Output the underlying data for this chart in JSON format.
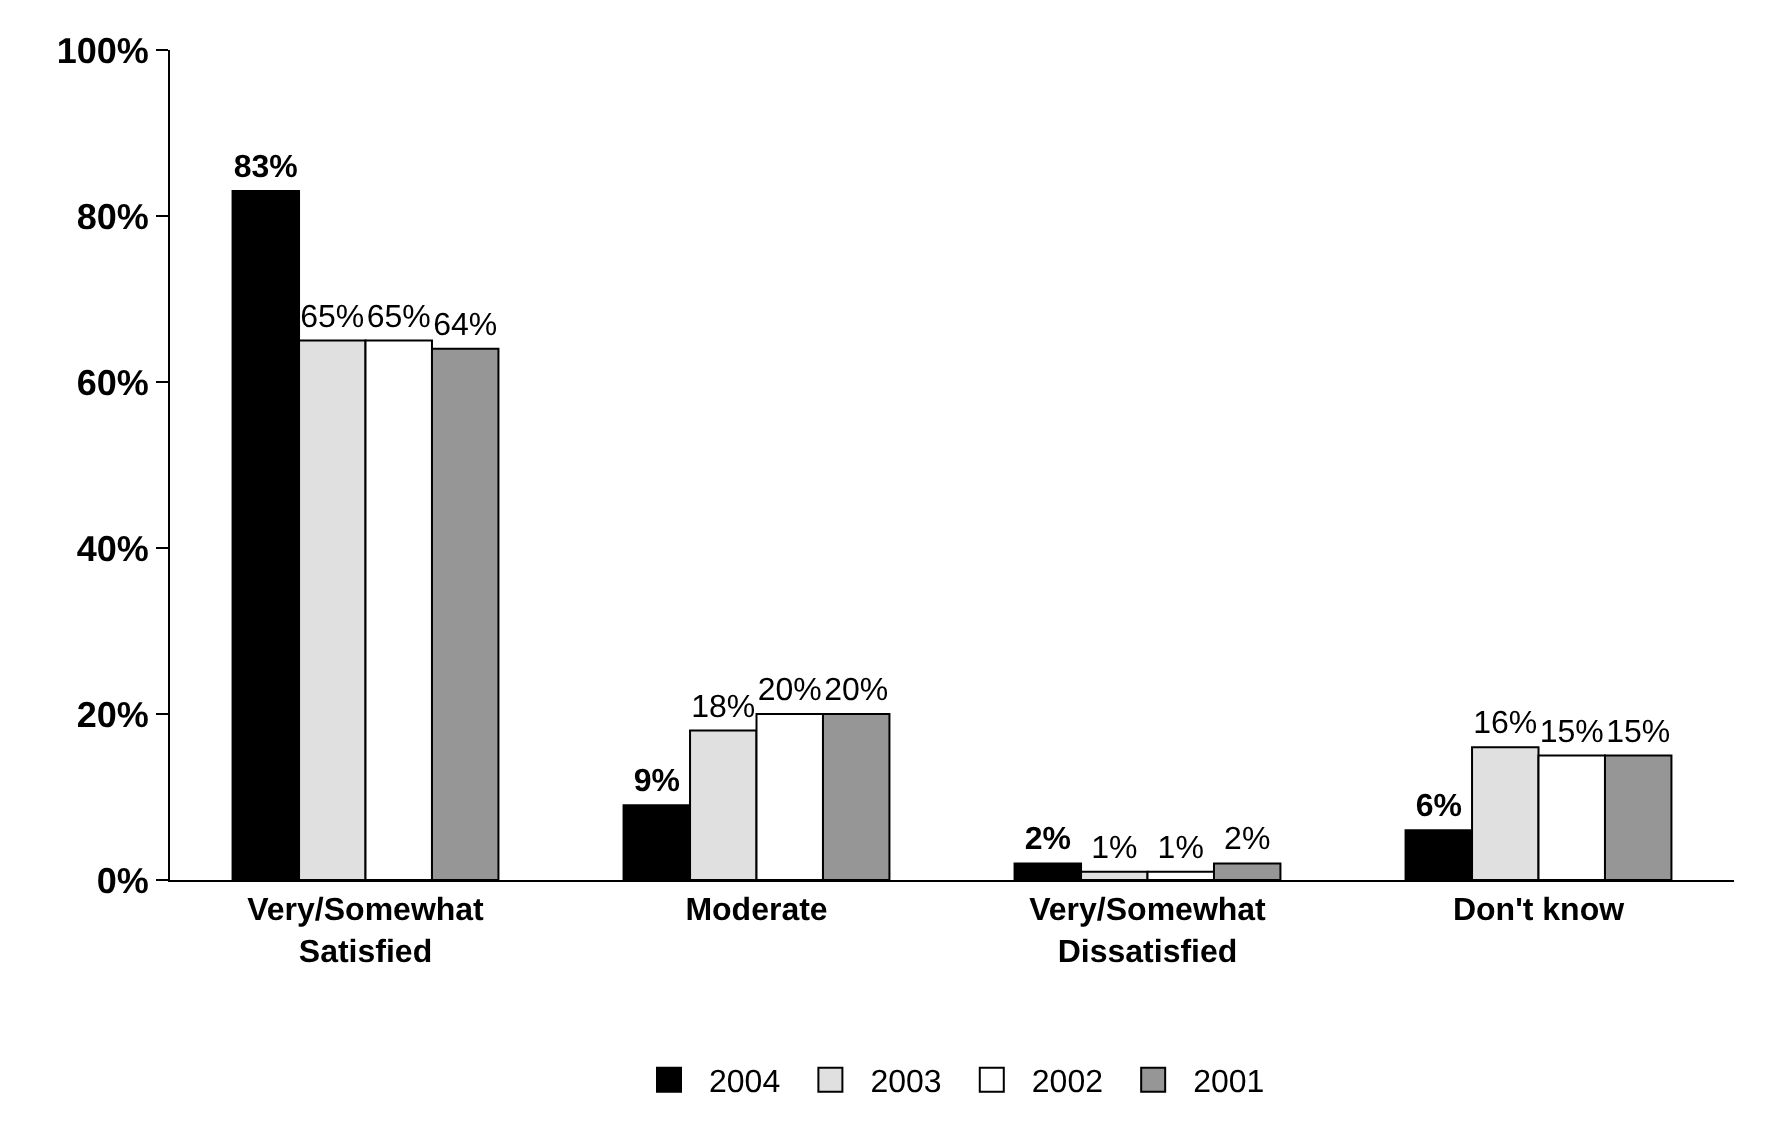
{
  "chart_data": {
    "type": "bar",
    "categories": [
      "Very/Somewhat\nSatisfied",
      "Moderate",
      "Very/Somewhat\nDissatisfied",
      "Don't know"
    ],
    "series": [
      {
        "name": "2004",
        "color": "#000000",
        "values": [
          83,
          9,
          2,
          6
        ],
        "value_labels": [
          "83%",
          "9%",
          "2%",
          "6%"
        ]
      },
      {
        "name": "2003",
        "color": "#e0e0e0",
        "values": [
          65,
          18,
          1,
          16
        ],
        "value_labels": [
          "65%",
          "18%",
          "1%",
          "16%"
        ]
      },
      {
        "name": "2002",
        "color": "#ffffff",
        "values": [
          65,
          20,
          1,
          15
        ],
        "value_labels": [
          "65%",
          "20%",
          "1%",
          "15%"
        ]
      },
      {
        "name": "2001",
        "color": "#969696",
        "values": [
          64,
          20,
          2,
          15
        ],
        "value_labels": [
          "64%",
          "20%",
          "2%",
          "15%"
        ]
      }
    ],
    "ylim": [
      0,
      100
    ],
    "yticks": [
      {
        "value": 0,
        "label": "0%"
      },
      {
        "value": 20,
        "label": "20%"
      },
      {
        "value": 40,
        "label": "40%"
      },
      {
        "value": 60,
        "label": "60%"
      },
      {
        "value": 80,
        "label": "80%"
      },
      {
        "value": 100,
        "label": "100%"
      }
    ],
    "grid": false,
    "legend": "bottom"
  }
}
